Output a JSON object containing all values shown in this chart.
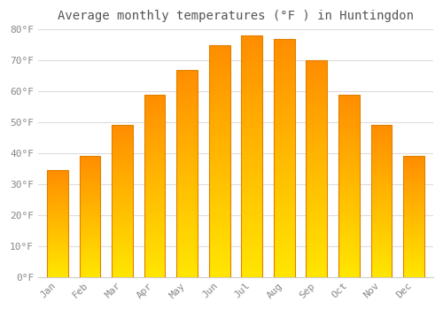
{
  "title": "Average monthly temperatures (°F ) in Huntingdon",
  "months": [
    "Jan",
    "Feb",
    "Mar",
    "Apr",
    "May",
    "Jun",
    "Jul",
    "Aug",
    "Sep",
    "Oct",
    "Nov",
    "Dec"
  ],
  "values": [
    34.5,
    39.0,
    49.0,
    59.0,
    67.0,
    75.0,
    78.0,
    77.0,
    70.0,
    59.0,
    49.0,
    39.0
  ],
  "bar_color_main": "#FFA500",
  "bar_color_light": "#FFD060",
  "bar_edge_color": "#E08000",
  "background_color": "#FFFFFF",
  "grid_color": "#DDDDDD",
  "ylim": [
    0,
    80
  ],
  "ytick_step": 10,
  "title_fontsize": 10,
  "tick_fontsize": 8,
  "bar_width": 0.65
}
